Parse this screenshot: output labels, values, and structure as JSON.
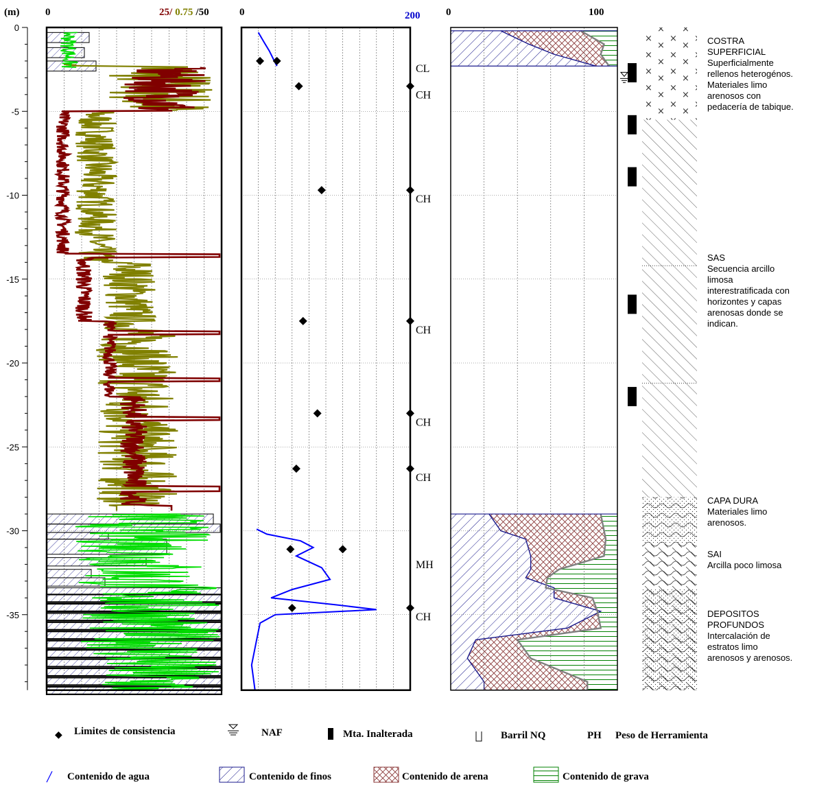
{
  "chart_data": {
    "type": "line",
    "depth_unit": "(m)",
    "depth_range": [
      0,
      -39.5
    ],
    "depth_ticks": [
      0,
      -5,
      -10,
      -15,
      -20,
      -25,
      -30,
      -35
    ],
    "panel1": {
      "x_tick_left": "0",
      "x_tick_right_a": "25/",
      "x_tick_right_b": "0.75",
      "x_tick_right_c": "/50",
      "scale_max_qc": 50,
      "scale_max_fs": 0.75,
      "scale_max_w": 50
    },
    "panel2": {
      "x_tick_left": "0",
      "x_tick_right": "200",
      "xlim": [
        0,
        200
      ],
      "water_content_series": [
        {
          "depth": -0.3,
          "w": 20
        },
        {
          "depth": -0.9,
          "w": 27
        },
        {
          "depth": -1.4,
          "w": 33
        },
        {
          "depth": -1.9,
          "w": 38
        },
        {
          "depth": -2.3,
          "w": 42
        },
        {
          "depth": -29.9,
          "w": 18
        },
        {
          "depth": -30.2,
          "w": 30
        },
        {
          "depth": -30.6,
          "w": 70
        },
        {
          "depth": -31.0,
          "w": 85
        },
        {
          "depth": -31.5,
          "w": 65
        },
        {
          "depth": -32.2,
          "w": 95
        },
        {
          "depth": -32.9,
          "w": 105
        },
        {
          "depth": -33.5,
          "w": 60
        },
        {
          "depth": -34.0,
          "w": 35
        },
        {
          "depth": -34.4,
          "w": 110
        },
        {
          "depth": -34.7,
          "w": 160
        },
        {
          "depth": -35.0,
          "w": 40
        },
        {
          "depth": -35.5,
          "w": 22
        },
        {
          "depth": -36.5,
          "w": 18
        },
        {
          "depth": -38.0,
          "w": 12
        },
        {
          "depth": -39.5,
          "w": 16
        }
      ],
      "consistency_limits": [
        {
          "depth": -2.0,
          "ll": 22,
          "lp": 42
        },
        {
          "depth": -3.5,
          "ll": 68
        },
        {
          "depth": -9.7,
          "ll": 95
        },
        {
          "depth": -17.5,
          "ll": 73
        },
        {
          "depth": -23.0,
          "ll": 90
        },
        {
          "depth": -26.3,
          "ll": 65
        },
        {
          "depth": -31.1,
          "ll": 58,
          "lp": 120
        },
        {
          "depth": -34.6,
          "ll": 60
        }
      ],
      "classifications": [
        {
          "depth": -2.5,
          "label": "CL"
        },
        {
          "depth": -3.5,
          "label": "CH"
        },
        {
          "depth": -9.7,
          "label": "CH"
        },
        {
          "depth": -17.5,
          "label": "CH"
        },
        {
          "depth": -23.0,
          "label": "CH"
        },
        {
          "depth": -26.3,
          "label": "CH"
        },
        {
          "depth": -31.5,
          "label": "MH"
        },
        {
          "depth": -34.6,
          "label": "CH"
        }
      ]
    },
    "panel3": {
      "x_tick_left": "0",
      "x_tick_right": "100",
      "xlim": [
        0,
        100
      ],
      "granulometry_top": [
        {
          "depth": -0.2,
          "fines": 30,
          "fines_sand": 78
        },
        {
          "depth": -1.0,
          "fines": 47,
          "fines_sand": 92
        },
        {
          "depth": -1.6,
          "fines": 62,
          "fines_sand": 90
        },
        {
          "depth": -2.3,
          "fines": 87,
          "fines_sand": 95
        }
      ],
      "granulometry_bottom": [
        {
          "depth": -29.0,
          "fines": 23,
          "fines_sand": 90
        },
        {
          "depth": -30.0,
          "fines": 30,
          "fines_sand": 92
        },
        {
          "depth": -30.5,
          "fines": 45,
          "fines_sand": 93
        },
        {
          "depth": -31.5,
          "fines": 48,
          "fines_sand": 92
        },
        {
          "depth": -32.3,
          "fines": 48,
          "fines_sand": 65
        },
        {
          "depth": -32.8,
          "fines": 45,
          "fines_sand": 58
        },
        {
          "depth": -33.4,
          "fines": 62,
          "fines_sand": 57
        },
        {
          "depth": -34.0,
          "fines": 62,
          "fines_sand": 85
        },
        {
          "depth": -34.8,
          "fines": 90,
          "fines_sand": 88
        },
        {
          "depth": -35.8,
          "fines": 70,
          "fines_sand": 90
        },
        {
          "depth": -36.5,
          "fines": 15,
          "fines_sand": 40
        },
        {
          "depth": -37.6,
          "fines": 10,
          "fines_sand": 48
        },
        {
          "depth": -39.0,
          "fines": 20,
          "fines_sand": 82
        },
        {
          "depth": -39.5,
          "fines": 20,
          "fines_sand": 82
        }
      ]
    },
    "naf_depth": -3.0,
    "undisturbed_samples": [
      -2.7,
      -5.8,
      -8.9,
      -16.5,
      -22.0
    ]
  },
  "strata": [
    {
      "title": "COSTRA SUPERFICIAL",
      "title_lines": [
        "COSTRA",
        "SUPERFICIAL"
      ],
      "desc_lines": [
        "Superficialmente",
        "rellenos heterogénos.",
        "Materiales limo",
        "arenosos con",
        "pedacería de tabique."
      ]
    },
    {
      "title": "SAS",
      "title_lines": [
        "SAS"
      ],
      "desc_lines": [
        "Secuencia arcillo",
        "limosa",
        "interestratificada con",
        "horizontes y capas",
        "arenosas donde se",
        "indican."
      ]
    },
    {
      "title": "CAPA DURA",
      "title_lines": [
        "CAPA DURA"
      ],
      "desc_lines": [
        "Materiales limo",
        "arenosos."
      ]
    },
    {
      "title": "SAI",
      "title_lines": [
        "SAI"
      ],
      "desc_lines": [
        "Arcilla poco limosa"
      ]
    },
    {
      "title": "DEPOSITOS PROFUNDOS",
      "title_lines": [
        "DEPOSITOS",
        "PROFUNDOS"
      ],
      "desc_lines": [
        "Intercalación de",
        "estratos limo",
        "arenosos y arenosos."
      ]
    }
  ],
  "legend": {
    "limits": "Limites de consistencia",
    "naf": "NAF",
    "sample": "Mta. Inalterada",
    "barrel": "Barril NQ",
    "ph_abbr": "PH",
    "ph": "Peso de Herramienta",
    "water": "Contenido de agua",
    "fines": "Contenido de finos",
    "sand": "Contenido de arena",
    "gravel": "Contenido de grava"
  },
  "colors": {
    "qc": "#800000",
    "fs": "#808000",
    "water": "#0000ff",
    "nspt": "#00dd00",
    "fines_hatch": "#1a1a8c",
    "sand_hatch": "#8b3a3a",
    "gravel_hatch": "#008000",
    "boundary": "#808080"
  }
}
